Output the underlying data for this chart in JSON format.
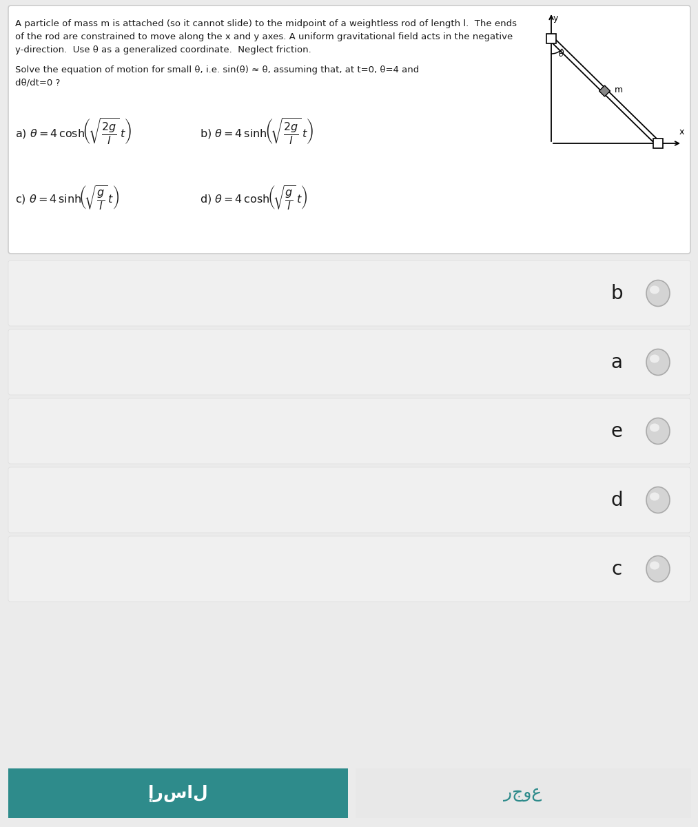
{
  "background_color": "#ebebeb",
  "question_box_color": "#ffffff",
  "question_box_border": "#cccccc",
  "question_text_1": "A particle of mass m is attached (so it cannot slide) to the midpoint of a weightless rod of length l.  The ends",
  "question_text_2": "of the rod are constrained to move along the x and y axes. A uniform gravitational field acts in the negative",
  "question_text_3": "y-direction.  Use θ as a generalized coordinate.  Neglect friction.",
  "question_text_4": "Solve the equation of motion for small θ, i.e. sin(θ) ≈ θ, assuming that, at t=0, θ=4 and",
  "question_text_5": "dθ/dt=0 ?",
  "choices": [
    "b",
    "a",
    "e",
    "d",
    "c"
  ],
  "choice_row_color": "#f0f0f0",
  "choice_row_border": "#dddddd",
  "button_left_text": "إرسال",
  "button_right_text": "رجوع",
  "button_left_color": "#2e8b8b",
  "button_right_color": "#e8e8e8",
  "button_left_text_color": "#ffffff",
  "button_right_text_color": "#2e8b8b",
  "radio_fill": "#d4d4d4",
  "radio_edge": "#aaaaaa",
  "text_color": "#1a1a1a",
  "math_color": "#1a1a1a"
}
